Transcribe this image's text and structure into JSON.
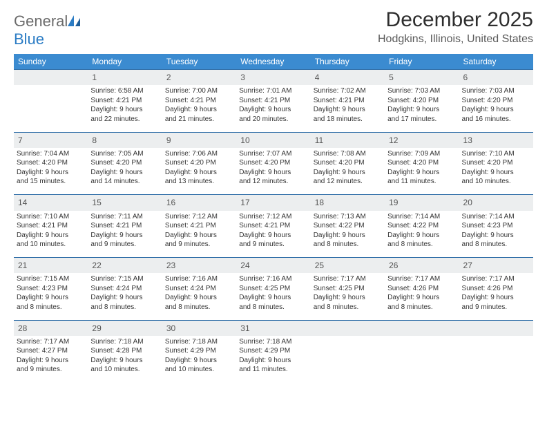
{
  "logo": {
    "word1": "General",
    "word2": "Blue"
  },
  "title": "December 2025",
  "subtitle": "Hodgkins, Illinois, United States",
  "colors": {
    "header_bg": "#3b8bd0",
    "header_text": "#ffffff",
    "rule": "#2a6aa5",
    "daynum_bg": "#eceeef",
    "logo_gray": "#6b6b6b",
    "logo_blue": "#2b7cc4"
  },
  "dayNames": [
    "Sunday",
    "Monday",
    "Tuesday",
    "Wednesday",
    "Thursday",
    "Friday",
    "Saturday"
  ],
  "weeks": [
    [
      null,
      {
        "n": "1",
        "sr": "6:58 AM",
        "ss": "4:21 PM",
        "dl": [
          "Daylight: 9 hours",
          "and 22 minutes."
        ]
      },
      {
        "n": "2",
        "sr": "7:00 AM",
        "ss": "4:21 PM",
        "dl": [
          "Daylight: 9 hours",
          "and 21 minutes."
        ]
      },
      {
        "n": "3",
        "sr": "7:01 AM",
        "ss": "4:21 PM",
        "dl": [
          "Daylight: 9 hours",
          "and 20 minutes."
        ]
      },
      {
        "n": "4",
        "sr": "7:02 AM",
        "ss": "4:21 PM",
        "dl": [
          "Daylight: 9 hours",
          "and 18 minutes."
        ]
      },
      {
        "n": "5",
        "sr": "7:03 AM",
        "ss": "4:20 PM",
        "dl": [
          "Daylight: 9 hours",
          "and 17 minutes."
        ]
      },
      {
        "n": "6",
        "sr": "7:03 AM",
        "ss": "4:20 PM",
        "dl": [
          "Daylight: 9 hours",
          "and 16 minutes."
        ]
      }
    ],
    [
      {
        "n": "7",
        "sr": "7:04 AM",
        "ss": "4:20 PM",
        "dl": [
          "Daylight: 9 hours",
          "and 15 minutes."
        ]
      },
      {
        "n": "8",
        "sr": "7:05 AM",
        "ss": "4:20 PM",
        "dl": [
          "Daylight: 9 hours",
          "and 14 minutes."
        ]
      },
      {
        "n": "9",
        "sr": "7:06 AM",
        "ss": "4:20 PM",
        "dl": [
          "Daylight: 9 hours",
          "and 13 minutes."
        ]
      },
      {
        "n": "10",
        "sr": "7:07 AM",
        "ss": "4:20 PM",
        "dl": [
          "Daylight: 9 hours",
          "and 12 minutes."
        ]
      },
      {
        "n": "11",
        "sr": "7:08 AM",
        "ss": "4:20 PM",
        "dl": [
          "Daylight: 9 hours",
          "and 12 minutes."
        ]
      },
      {
        "n": "12",
        "sr": "7:09 AM",
        "ss": "4:20 PM",
        "dl": [
          "Daylight: 9 hours",
          "and 11 minutes."
        ]
      },
      {
        "n": "13",
        "sr": "7:10 AM",
        "ss": "4:20 PM",
        "dl": [
          "Daylight: 9 hours",
          "and 10 minutes."
        ]
      }
    ],
    [
      {
        "n": "14",
        "sr": "7:10 AM",
        "ss": "4:21 PM",
        "dl": [
          "Daylight: 9 hours",
          "and 10 minutes."
        ]
      },
      {
        "n": "15",
        "sr": "7:11 AM",
        "ss": "4:21 PM",
        "dl": [
          "Daylight: 9 hours",
          "and 9 minutes."
        ]
      },
      {
        "n": "16",
        "sr": "7:12 AM",
        "ss": "4:21 PM",
        "dl": [
          "Daylight: 9 hours",
          "and 9 minutes."
        ]
      },
      {
        "n": "17",
        "sr": "7:12 AM",
        "ss": "4:21 PM",
        "dl": [
          "Daylight: 9 hours",
          "and 9 minutes."
        ]
      },
      {
        "n": "18",
        "sr": "7:13 AM",
        "ss": "4:22 PM",
        "dl": [
          "Daylight: 9 hours",
          "and 8 minutes."
        ]
      },
      {
        "n": "19",
        "sr": "7:14 AM",
        "ss": "4:22 PM",
        "dl": [
          "Daylight: 9 hours",
          "and 8 minutes."
        ]
      },
      {
        "n": "20",
        "sr": "7:14 AM",
        "ss": "4:23 PM",
        "dl": [
          "Daylight: 9 hours",
          "and 8 minutes."
        ]
      }
    ],
    [
      {
        "n": "21",
        "sr": "7:15 AM",
        "ss": "4:23 PM",
        "dl": [
          "Daylight: 9 hours",
          "and 8 minutes."
        ]
      },
      {
        "n": "22",
        "sr": "7:15 AM",
        "ss": "4:24 PM",
        "dl": [
          "Daylight: 9 hours",
          "and 8 minutes."
        ]
      },
      {
        "n": "23",
        "sr": "7:16 AM",
        "ss": "4:24 PM",
        "dl": [
          "Daylight: 9 hours",
          "and 8 minutes."
        ]
      },
      {
        "n": "24",
        "sr": "7:16 AM",
        "ss": "4:25 PM",
        "dl": [
          "Daylight: 9 hours",
          "and 8 minutes."
        ]
      },
      {
        "n": "25",
        "sr": "7:17 AM",
        "ss": "4:25 PM",
        "dl": [
          "Daylight: 9 hours",
          "and 8 minutes."
        ]
      },
      {
        "n": "26",
        "sr": "7:17 AM",
        "ss": "4:26 PM",
        "dl": [
          "Daylight: 9 hours",
          "and 8 minutes."
        ]
      },
      {
        "n": "27",
        "sr": "7:17 AM",
        "ss": "4:26 PM",
        "dl": [
          "Daylight: 9 hours",
          "and 9 minutes."
        ]
      }
    ],
    [
      {
        "n": "28",
        "sr": "7:17 AM",
        "ss": "4:27 PM",
        "dl": [
          "Daylight: 9 hours",
          "and 9 minutes."
        ]
      },
      {
        "n": "29",
        "sr": "7:18 AM",
        "ss": "4:28 PM",
        "dl": [
          "Daylight: 9 hours",
          "and 10 minutes."
        ]
      },
      {
        "n": "30",
        "sr": "7:18 AM",
        "ss": "4:29 PM",
        "dl": [
          "Daylight: 9 hours",
          "and 10 minutes."
        ]
      },
      {
        "n": "31",
        "sr": "7:18 AM",
        "ss": "4:29 PM",
        "dl": [
          "Daylight: 9 hours",
          "and 11 minutes."
        ]
      },
      null,
      null,
      null
    ]
  ]
}
